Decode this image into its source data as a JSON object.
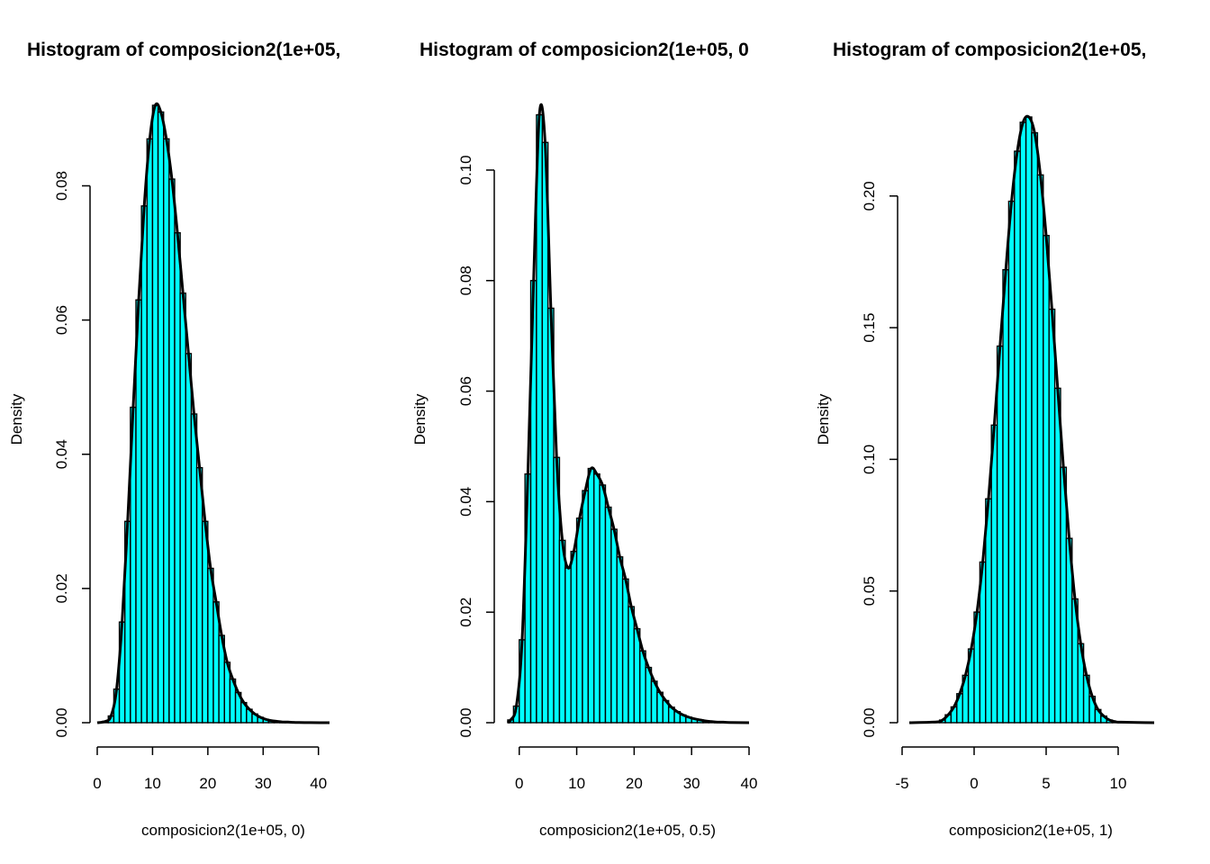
{
  "colors": {
    "bar_fill": "#00FFFF",
    "stroke": "#000000",
    "background": "#FFFFFF"
  },
  "chart_data": [
    {
      "type": "bar",
      "title": "Histogram of composicion2(1e+05,",
      "xlabel": "composicion2(1e+05, 0)",
      "ylabel": "Density",
      "xlim": [
        0,
        42
      ],
      "ylim": [
        0,
        0.092
      ],
      "xticks": [
        0,
        10,
        20,
        30,
        40
      ],
      "xtick_labels": [
        "0",
        "10",
        "20",
        "30",
        "40"
      ],
      "yticks": [
        0,
        0.02,
        0.04,
        0.06,
        0.08
      ],
      "ytick_labels": [
        "0.00",
        "0.02",
        "0.04",
        "0.06",
        "0.08"
      ],
      "density_curve": true,
      "x": [
        1.5,
        2.5,
        3.5,
        4.5,
        5.5,
        6.5,
        7.5,
        8.5,
        9.5,
        10.5,
        11.5,
        12.5,
        13.5,
        14.5,
        15.5,
        16.5,
        17.5,
        18.5,
        19.5,
        20.5,
        21.5,
        22.5,
        23.5,
        24.5,
        25.5,
        26.5,
        27.5,
        28.5,
        29.5,
        30.5,
        31.5,
        32.5,
        33.5,
        34.5,
        35.5,
        36.5,
        37.5,
        38.5
      ],
      "values": [
        0.0002,
        0.001,
        0.005,
        0.015,
        0.03,
        0.047,
        0.063,
        0.077,
        0.087,
        0.092,
        0.091,
        0.087,
        0.081,
        0.073,
        0.064,
        0.055,
        0.046,
        0.038,
        0.03,
        0.023,
        0.018,
        0.013,
        0.009,
        0.0065,
        0.0045,
        0.003,
        0.002,
        0.0013,
        0.0008,
        0.0005,
        0.0003,
        0.0002,
        0.0001,
        0.0001,
        5e-05,
        3e-05,
        2e-05,
        1e-05
      ]
    },
    {
      "type": "bar",
      "title": "Histogram of composicion2(1e+05, 0",
      "xlabel": "composicion2(1e+05, 0.5)",
      "ylabel": "Density",
      "xlim": [
        -2,
        40
      ],
      "ylim": [
        0,
        0.114
      ],
      "xticks": [
        0,
        10,
        20,
        30,
        40
      ],
      "xtick_labels": [
        "0",
        "10",
        "20",
        "30",
        "40"
      ],
      "yticks": [
        0,
        0.02,
        0.04,
        0.06,
        0.08,
        0.1
      ],
      "ytick_labels": [
        "0.00",
        "0.02",
        "0.04",
        "0.06",
        "0.08",
        "0.10"
      ],
      "density_curve": true,
      "x": [
        -1.5,
        -0.5,
        0.5,
        1.5,
        2.5,
        3.5,
        4.5,
        5.5,
        6.5,
        7.5,
        8.5,
        9.5,
        10.5,
        11.5,
        12.5,
        13.5,
        14.5,
        15.5,
        16.5,
        17.5,
        18.5,
        19.5,
        20.5,
        21.5,
        22.5,
        23.5,
        24.5,
        25.5,
        26.5,
        27.5,
        28.5,
        29.5,
        30.5,
        31.5,
        32.5,
        33.5,
        34.5,
        35.5,
        36.5
      ],
      "values": [
        0.0005,
        0.003,
        0.015,
        0.045,
        0.08,
        0.11,
        0.105,
        0.075,
        0.048,
        0.033,
        0.028,
        0.031,
        0.037,
        0.042,
        0.046,
        0.045,
        0.043,
        0.039,
        0.035,
        0.03,
        0.026,
        0.021,
        0.017,
        0.013,
        0.01,
        0.0075,
        0.0055,
        0.004,
        0.0028,
        0.002,
        0.0014,
        0.001,
        0.0007,
        0.0005,
        0.0003,
        0.0002,
        0.0001,
        0.0001,
        5e-05
      ]
    },
    {
      "type": "bar",
      "title": "Histogram of composicion2(1e+05,",
      "xlabel": "composicion2(1e+05, 1)",
      "ylabel": "Density",
      "xlim": [
        -4.5,
        12.5
      ],
      "ylim": [
        0,
        0.23
      ],
      "xticks": [
        -5,
        0,
        5,
        10
      ],
      "xtick_labels": [
        "-5",
        "0",
        "5",
        "10"
      ],
      "yticks": [
        0,
        0.05,
        0.1,
        0.15,
        0.2
      ],
      "ytick_labels": [
        "0.00",
        "0.05",
        "0.10",
        "0.15",
        "0.20"
      ],
      "density_curve": true,
      "x": [
        -2.6,
        -2.2,
        -1.8,
        -1.4,
        -1.0,
        -0.6,
        -0.2,
        0.2,
        0.6,
        1.0,
        1.4,
        1.8,
        2.2,
        2.6,
        3.0,
        3.4,
        3.8,
        4.2,
        4.6,
        5.0,
        5.4,
        5.8,
        6.2,
        6.6,
        7.0,
        7.4,
        7.8,
        8.2,
        8.6,
        9.0,
        9.4,
        9.8,
        10.2
      ],
      "values": [
        0.0003,
        0.001,
        0.003,
        0.006,
        0.011,
        0.018,
        0.028,
        0.042,
        0.061,
        0.085,
        0.113,
        0.143,
        0.172,
        0.198,
        0.217,
        0.228,
        0.23,
        0.224,
        0.208,
        0.185,
        0.157,
        0.127,
        0.097,
        0.07,
        0.047,
        0.03,
        0.018,
        0.01,
        0.005,
        0.0025,
        0.001,
        0.0004,
        0.0002
      ]
    }
  ]
}
